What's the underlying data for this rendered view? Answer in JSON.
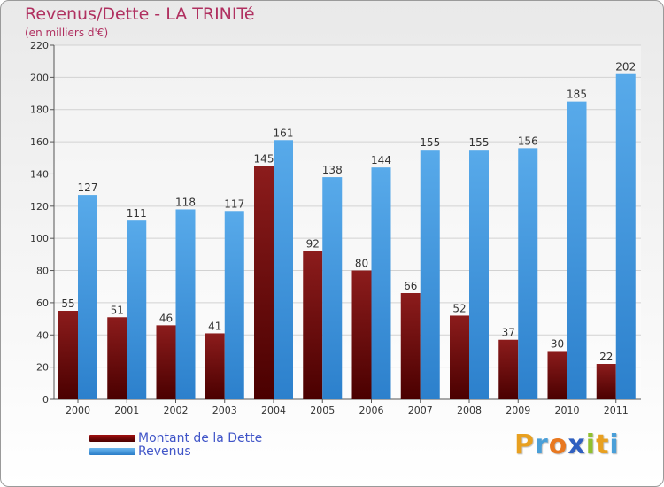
{
  "header": {
    "title": "Revenus/Dette - LA TRINITé",
    "subtitle": "(en milliers d'€)"
  },
  "colors": {
    "dette": "#7a0a0a",
    "revenus": "#3c97e0",
    "title": "#b03060",
    "legend_text": "#4055c8"
  },
  "legend": {
    "items": [
      {
        "label": "Montant de la Dette",
        "color": "#7a0a0a"
      },
      {
        "label": "Revenus",
        "color": "#3c97e0"
      }
    ]
  },
  "brand": {
    "letters": [
      "P",
      "r",
      "o",
      "x",
      "i",
      "t",
      "i"
    ],
    "colors": [
      "#e8a020",
      "#4a9fd8",
      "#e87820",
      "#3060c0",
      "#90c030",
      "#e8a020",
      "#4a9fd8"
    ]
  },
  "chart_data": {
    "type": "bar",
    "categories": [
      "2000",
      "2001",
      "2002",
      "2003",
      "2004",
      "2005",
      "2006",
      "2007",
      "2008",
      "2009",
      "2010",
      "2011"
    ],
    "series": [
      {
        "name": "Montant de la Dette",
        "values": [
          55,
          51,
          46,
          41,
          145,
          92,
          80,
          66,
          52,
          37,
          30,
          22
        ]
      },
      {
        "name": "Revenus",
        "values": [
          127,
          111,
          118,
          117,
          161,
          138,
          144,
          155,
          155,
          156,
          185,
          202
        ]
      }
    ],
    "title": "Revenus/Dette - LA TRINITé",
    "ylabel": "(en milliers d'€)",
    "ylim": [
      0,
      220
    ],
    "yticks": [
      0,
      20,
      40,
      60,
      80,
      100,
      120,
      140,
      160,
      180,
      200,
      220
    ],
    "grid": true,
    "legend_position": "bottom-left"
  }
}
